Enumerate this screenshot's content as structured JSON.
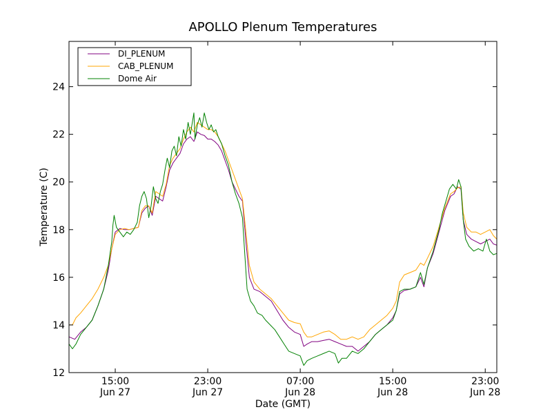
{
  "chart_data": {
    "type": "line",
    "title": "APOLLO Plenum Temperatures",
    "xlabel": "Date (GMT)",
    "ylabel": "Temperature (C)",
    "x_unit": "hours since Jun 27 11:00 GMT",
    "xlim": [
      0,
      37
    ],
    "ylim": [
      12,
      25.9
    ],
    "yticks": [
      12,
      14,
      16,
      18,
      20,
      22,
      24
    ],
    "xticks": [
      {
        "x": 4,
        "time": "15:00",
        "date": "Jun 27"
      },
      {
        "x": 12,
        "time": "23:00",
        "date": "Jun 27"
      },
      {
        "x": 20,
        "time": "07:00",
        "date": "Jun 28"
      },
      {
        "x": 28,
        "time": "15:00",
        "date": "Jun 28"
      },
      {
        "x": 36,
        "time": "23:00",
        "date": "Jun 28"
      }
    ],
    "legend_position": "top-left",
    "series": [
      {
        "name": "DI_PLENUM",
        "color": "#800080",
        "points": [
          [
            0,
            13.5
          ],
          [
            0.5,
            13.4
          ],
          [
            1,
            13.7
          ],
          [
            1.5,
            13.9
          ],
          [
            2,
            14.2
          ],
          [
            2.5,
            14.8
          ],
          [
            3,
            15.5
          ],
          [
            3.4,
            16.3
          ],
          [
            3.7,
            17.2
          ],
          [
            4,
            17.9
          ],
          [
            4.4,
            18.05
          ],
          [
            4.8,
            18.0
          ],
          [
            5.2,
            18.0
          ],
          [
            5.6,
            18.05
          ],
          [
            6,
            18.1
          ],
          [
            6.3,
            18.7
          ],
          [
            6.6,
            18.9
          ],
          [
            6.9,
            19.0
          ],
          [
            7.2,
            18.6
          ],
          [
            7.5,
            19.4
          ],
          [
            7.8,
            19.3
          ],
          [
            8.1,
            19.2
          ],
          [
            8.4,
            19.8
          ],
          [
            8.7,
            20.5
          ],
          [
            9,
            20.8
          ],
          [
            9.3,
            21.0
          ],
          [
            9.6,
            21.2
          ],
          [
            9.9,
            21.6
          ],
          [
            10.2,
            21.8
          ],
          [
            10.5,
            21.9
          ],
          [
            10.8,
            21.7
          ],
          [
            11.1,
            22.1
          ],
          [
            11.4,
            22.0
          ],
          [
            11.7,
            21.95
          ],
          [
            12,
            21.8
          ],
          [
            12.3,
            21.8
          ],
          [
            12.6,
            21.7
          ],
          [
            12.9,
            21.55
          ],
          [
            13.2,
            21.3
          ],
          [
            13.5,
            20.9
          ],
          [
            13.8,
            20.5
          ],
          [
            14.1,
            20.0
          ],
          [
            14.4,
            19.7
          ],
          [
            14.7,
            19.4
          ],
          [
            15,
            19.2
          ],
          [
            15.3,
            17.5
          ],
          [
            15.6,
            16.0
          ],
          [
            16,
            15.5
          ],
          [
            16.5,
            15.4
          ],
          [
            17,
            15.2
          ],
          [
            17.5,
            15.0
          ],
          [
            18,
            14.6
          ],
          [
            18.5,
            14.2
          ],
          [
            19,
            13.9
          ],
          [
            19.5,
            13.7
          ],
          [
            20,
            13.6
          ],
          [
            20.3,
            13.1
          ],
          [
            20.6,
            13.2
          ],
          [
            21,
            13.3
          ],
          [
            21.5,
            13.3
          ],
          [
            22,
            13.35
          ],
          [
            22.5,
            13.4
          ],
          [
            23,
            13.3
          ],
          [
            23.5,
            13.2
          ],
          [
            24,
            13.1
          ],
          [
            24.5,
            13.1
          ],
          [
            25,
            12.9
          ],
          [
            25.5,
            13.1
          ],
          [
            26,
            13.3
          ],
          [
            26.5,
            13.6
          ],
          [
            27,
            13.8
          ],
          [
            27.5,
            14.0
          ],
          [
            28,
            14.3
          ],
          [
            28.3,
            14.6
          ],
          [
            28.6,
            15.3
          ],
          [
            29,
            15.45
          ],
          [
            29.5,
            15.5
          ],
          [
            30,
            15.6
          ],
          [
            30.4,
            16.0
          ],
          [
            30.7,
            15.6
          ],
          [
            31,
            16.4
          ],
          [
            31.5,
            17.0
          ],
          [
            32,
            17.9
          ],
          [
            32.5,
            18.8
          ],
          [
            33,
            19.4
          ],
          [
            33.3,
            19.5
          ],
          [
            33.6,
            19.8
          ],
          [
            33.9,
            19.7
          ],
          [
            34.1,
            18.4
          ],
          [
            34.4,
            17.8
          ],
          [
            34.8,
            17.6
          ],
          [
            35.2,
            17.5
          ],
          [
            35.6,
            17.4
          ],
          [
            36,
            17.5
          ],
          [
            36.4,
            17.6
          ],
          [
            36.7,
            17.4
          ],
          [
            37,
            17.35
          ]
        ]
      },
      {
        "name": "CAB_PLENUM",
        "color": "#ffa500",
        "points": [
          [
            0,
            14.0
          ],
          [
            0.3,
            14.0
          ],
          [
            0.6,
            14.3
          ],
          [
            1,
            14.5
          ],
          [
            1.5,
            14.8
          ],
          [
            2,
            15.1
          ],
          [
            2.5,
            15.5
          ],
          [
            3,
            16.0
          ],
          [
            3.4,
            16.5
          ],
          [
            3.7,
            17.2
          ],
          [
            4,
            17.8
          ],
          [
            4.4,
            18.0
          ],
          [
            4.8,
            18.05
          ],
          [
            5.2,
            18.0
          ],
          [
            5.6,
            18.05
          ],
          [
            6,
            18.1
          ],
          [
            6.3,
            18.8
          ],
          [
            6.6,
            19.0
          ],
          [
            6.9,
            19.0
          ],
          [
            7.2,
            18.7
          ],
          [
            7.5,
            19.6
          ],
          [
            7.8,
            19.5
          ],
          [
            8.1,
            19.4
          ],
          [
            8.4,
            19.9
          ],
          [
            8.7,
            20.7
          ],
          [
            9,
            21.0
          ],
          [
            9.3,
            21.2
          ],
          [
            9.6,
            21.4
          ],
          [
            9.9,
            21.8
          ],
          [
            10.2,
            22.1
          ],
          [
            10.5,
            22.3
          ],
          [
            10.8,
            22.1
          ],
          [
            11.1,
            22.5
          ],
          [
            11.4,
            22.4
          ],
          [
            11.7,
            22.3
          ],
          [
            12,
            22.2
          ],
          [
            12.3,
            22.2
          ],
          [
            12.6,
            22.1
          ],
          [
            12.9,
            21.9
          ],
          [
            13.2,
            21.6
          ],
          [
            13.5,
            21.3
          ],
          [
            13.8,
            20.9
          ],
          [
            14.1,
            20.5
          ],
          [
            14.4,
            20.1
          ],
          [
            14.7,
            19.7
          ],
          [
            15,
            19.3
          ],
          [
            15.3,
            17.9
          ],
          [
            15.6,
            16.5
          ],
          [
            16,
            15.8
          ],
          [
            16.5,
            15.5
          ],
          [
            17,
            15.3
          ],
          [
            17.5,
            15.1
          ],
          [
            18,
            14.8
          ],
          [
            18.5,
            14.5
          ],
          [
            19,
            14.2
          ],
          [
            19.5,
            14.1
          ],
          [
            20,
            14.05
          ],
          [
            20.3,
            13.7
          ],
          [
            20.6,
            13.5
          ],
          [
            21,
            13.5
          ],
          [
            21.5,
            13.6
          ],
          [
            22,
            13.7
          ],
          [
            22.5,
            13.75
          ],
          [
            23,
            13.6
          ],
          [
            23.5,
            13.4
          ],
          [
            24,
            13.4
          ],
          [
            24.5,
            13.5
          ],
          [
            25,
            13.4
          ],
          [
            25.5,
            13.5
          ],
          [
            26,
            13.8
          ],
          [
            26.5,
            14.0
          ],
          [
            27,
            14.2
          ],
          [
            27.5,
            14.4
          ],
          [
            28,
            14.7
          ],
          [
            28.3,
            15.0
          ],
          [
            28.6,
            15.8
          ],
          [
            29,
            16.1
          ],
          [
            29.5,
            16.2
          ],
          [
            30,
            16.3
          ],
          [
            30.4,
            16.6
          ],
          [
            30.7,
            16.5
          ],
          [
            31,
            16.8
          ],
          [
            31.5,
            17.3
          ],
          [
            32,
            18.1
          ],
          [
            32.5,
            18.9
          ],
          [
            33,
            19.5
          ],
          [
            33.3,
            19.6
          ],
          [
            33.6,
            19.75
          ],
          [
            33.9,
            19.8
          ],
          [
            34.1,
            18.7
          ],
          [
            34.4,
            18.1
          ],
          [
            34.8,
            17.9
          ],
          [
            35.2,
            17.9
          ],
          [
            35.6,
            17.8
          ],
          [
            36,
            17.9
          ],
          [
            36.4,
            18.0
          ],
          [
            36.7,
            17.75
          ],
          [
            37,
            17.6
          ]
        ]
      },
      {
        "name": "Dome Air",
        "color": "#008000",
        "points": [
          [
            0,
            13.2
          ],
          [
            0.3,
            13.0
          ],
          [
            0.6,
            13.2
          ],
          [
            1,
            13.6
          ],
          [
            1.5,
            13.9
          ],
          [
            2,
            14.2
          ],
          [
            2.5,
            14.8
          ],
          [
            3,
            15.5
          ],
          [
            3.4,
            16.5
          ],
          [
            3.7,
            17.5
          ],
          [
            3.8,
            18.2
          ],
          [
            3.9,
            18.6
          ],
          [
            4.1,
            18.1
          ],
          [
            4.4,
            17.9
          ],
          [
            4.7,
            17.7
          ],
          [
            5,
            17.9
          ],
          [
            5.3,
            17.8
          ],
          [
            5.6,
            18.0
          ],
          [
            5.9,
            18.3
          ],
          [
            6.1,
            19.0
          ],
          [
            6.3,
            19.4
          ],
          [
            6.5,
            19.6
          ],
          [
            6.7,
            19.3
          ],
          [
            6.9,
            18.5
          ],
          [
            7.1,
            19.0
          ],
          [
            7.3,
            19.8
          ],
          [
            7.5,
            19.3
          ],
          [
            7.7,
            19.1
          ],
          [
            7.9,
            19.6
          ],
          [
            8.1,
            19.9
          ],
          [
            8.3,
            20.5
          ],
          [
            8.5,
            21.0
          ],
          [
            8.7,
            20.6
          ],
          [
            8.9,
            21.3
          ],
          [
            9.1,
            21.5
          ],
          [
            9.3,
            21.1
          ],
          [
            9.5,
            21.9
          ],
          [
            9.7,
            21.5
          ],
          [
            9.9,
            22.2
          ],
          [
            10.1,
            21.8
          ],
          [
            10.3,
            22.5
          ],
          [
            10.5,
            22.0
          ],
          [
            10.7,
            22.6
          ],
          [
            10.8,
            22.9
          ],
          [
            10.9,
            21.8
          ],
          [
            11.1,
            22.4
          ],
          [
            11.3,
            22.7
          ],
          [
            11.5,
            22.3
          ],
          [
            11.7,
            22.9
          ],
          [
            11.9,
            22.5
          ],
          [
            12.1,
            22.2
          ],
          [
            12.3,
            22.4
          ],
          [
            12.5,
            22.1
          ],
          [
            12.7,
            22.2
          ],
          [
            12.9,
            21.9
          ],
          [
            13.2,
            21.6
          ],
          [
            13.5,
            21.1
          ],
          [
            13.8,
            20.7
          ],
          [
            14.1,
            20.0
          ],
          [
            14.4,
            19.5
          ],
          [
            14.7,
            19.1
          ],
          [
            15,
            18.5
          ],
          [
            15.2,
            17.0
          ],
          [
            15.4,
            15.5
          ],
          [
            15.7,
            15.0
          ],
          [
            16,
            14.8
          ],
          [
            16.3,
            14.5
          ],
          [
            16.7,
            14.4
          ],
          [
            17,
            14.2
          ],
          [
            17.4,
            14.0
          ],
          [
            17.8,
            13.8
          ],
          [
            18.2,
            13.5
          ],
          [
            18.6,
            13.2
          ],
          [
            19,
            12.9
          ],
          [
            19.5,
            12.8
          ],
          [
            20,
            12.7
          ],
          [
            20.3,
            12.3
          ],
          [
            20.6,
            12.5
          ],
          [
            21,
            12.6
          ],
          [
            21.5,
            12.7
          ],
          [
            22,
            12.8
          ],
          [
            22.5,
            12.9
          ],
          [
            23,
            12.8
          ],
          [
            23.3,
            12.4
          ],
          [
            23.6,
            12.6
          ],
          [
            24,
            12.6
          ],
          [
            24.5,
            12.9
          ],
          [
            25,
            12.8
          ],
          [
            25.5,
            13.0
          ],
          [
            26,
            13.3
          ],
          [
            26.5,
            13.6
          ],
          [
            27,
            13.8
          ],
          [
            27.5,
            14.0
          ],
          [
            28,
            14.2
          ],
          [
            28.3,
            14.6
          ],
          [
            28.6,
            15.4
          ],
          [
            29,
            15.5
          ],
          [
            29.5,
            15.5
          ],
          [
            30,
            15.6
          ],
          [
            30.4,
            16.2
          ],
          [
            30.7,
            15.7
          ],
          [
            31,
            16.4
          ],
          [
            31.5,
            17.1
          ],
          [
            32,
            18.0
          ],
          [
            32.3,
            18.7
          ],
          [
            32.6,
            19.2
          ],
          [
            32.9,
            19.7
          ],
          [
            33.2,
            19.9
          ],
          [
            33.5,
            19.7
          ],
          [
            33.7,
            20.1
          ],
          [
            33.9,
            19.8
          ],
          [
            34.1,
            18.4
          ],
          [
            34.3,
            17.6
          ],
          [
            34.6,
            17.3
          ],
          [
            35,
            17.1
          ],
          [
            35.4,
            17.2
          ],
          [
            35.8,
            17.1
          ],
          [
            36.1,
            17.6
          ],
          [
            36.4,
            17.1
          ],
          [
            36.7,
            16.95
          ],
          [
            37,
            17.0
          ]
        ]
      }
    ]
  }
}
